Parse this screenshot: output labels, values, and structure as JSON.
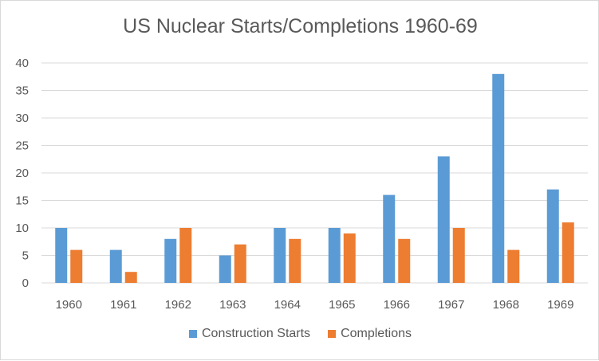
{
  "chart_data": {
    "type": "bar",
    "title": "US Nuclear Starts/Completions 1960-69",
    "categories": [
      "1960",
      "1961",
      "1962",
      "1963",
      "1964",
      "1965",
      "1966",
      "1967",
      "1968",
      "1969"
    ],
    "series": [
      {
        "name": "Construction Starts",
        "color": "#5b9bd5",
        "values": [
          10,
          6,
          8,
          5,
          10,
          10,
          16,
          23,
          38,
          17
        ]
      },
      {
        "name": "Completions",
        "color": "#ed7d31",
        "values": [
          6,
          2,
          10,
          7,
          8,
          9,
          8,
          10,
          6,
          11
        ]
      }
    ],
    "ylim": [
      0,
      40
    ],
    "yticks": [
      0,
      5,
      10,
      15,
      20,
      25,
      30,
      35,
      40
    ],
    "grid": true,
    "legend_position": "bottom"
  }
}
